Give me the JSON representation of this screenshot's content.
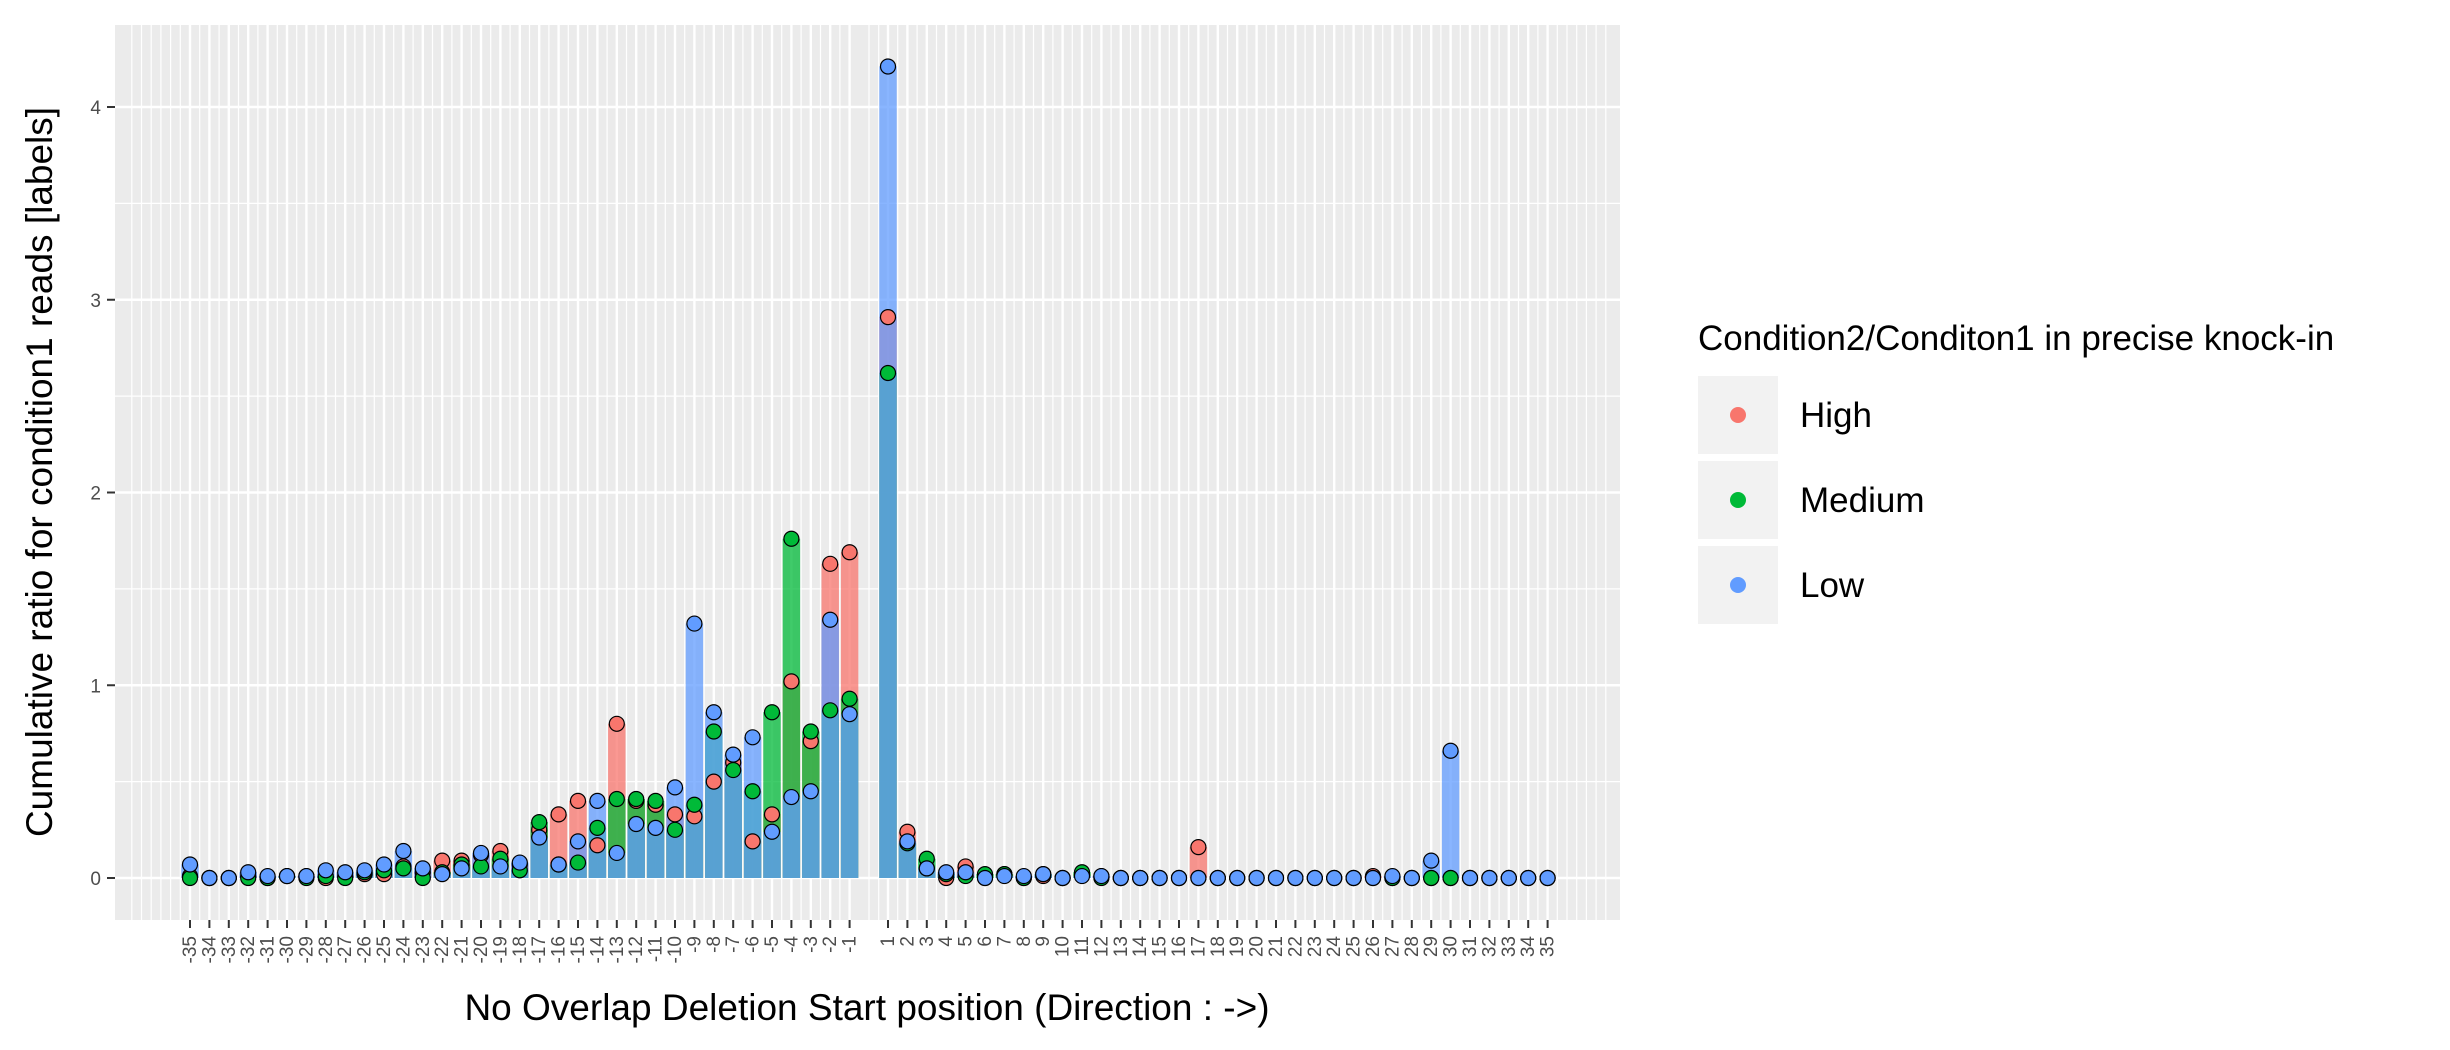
{
  "chart_data": {
    "type": "bar",
    "xlabel": "No Overlap Deletion Start position (Direction : ->)",
    "ylabel": "Cumulative ratio for condition1 reads [labels]",
    "ylim": [
      -0.2,
      4.4
    ],
    "yticks": [
      0,
      1,
      2,
      3,
      4
    ],
    "grid": true,
    "legend": {
      "title": "Condition2/Conditon1 in precise knock-in",
      "position": "right",
      "entries": [
        "High",
        "Medium",
        "Low"
      ]
    },
    "colors": {
      "High": "#F8766D",
      "Medium": "#00BA38",
      "Low": "#619CFF"
    },
    "categories": [
      "-35",
      "-34",
      "-33",
      "-32",
      "-31",
      "-30",
      "-29",
      "-28",
      "-27",
      "-26",
      "-25",
      "-24",
      "-23",
      "-22",
      "-21",
      "-20",
      "-19",
      "-18",
      "-17",
      "-16",
      "-15",
      "-14",
      "-13",
      "-12",
      "-11",
      "-10",
      "-9",
      "-8",
      "-7",
      "-6",
      "-5",
      "-4",
      "-3",
      "-2",
      "-1",
      "1",
      "2",
      "3",
      "4",
      "5",
      "6",
      "7",
      "8",
      "9",
      "10",
      "11",
      "12",
      "13",
      "14",
      "15",
      "16",
      "17",
      "18",
      "19",
      "20",
      "21",
      "22",
      "23",
      "24",
      "25",
      "26",
      "27",
      "28",
      "29",
      "30",
      "31",
      "32",
      "33",
      "34",
      "35"
    ],
    "series": [
      {
        "name": "High",
        "values": [
          0.01,
          0.0,
          0.0,
          0.01,
          0.0,
          0.01,
          0.01,
          0.0,
          0.01,
          0.02,
          0.02,
          0.06,
          0.03,
          0.09,
          0.09,
          0.12,
          0.14,
          0.07,
          0.25,
          0.33,
          0.4,
          0.17,
          0.8,
          0.4,
          0.38,
          0.33,
          0.32,
          0.5,
          0.6,
          0.19,
          0.33,
          1.02,
          0.71,
          1.63,
          1.69,
          2.91,
          0.24,
          0.05,
          0.0,
          0.06,
          0.0,
          0.02,
          0.0,
          0.01,
          0.0,
          0.02,
          0.01,
          0.0,
          0.0,
          0.0,
          0.0,
          0.16,
          0.0,
          0.0,
          0.0,
          0.0,
          0.0,
          0.0,
          0.0,
          0.0,
          0.01,
          0.0,
          0.0,
          0.0,
          0.0,
          0.0,
          0.0,
          0.0,
          0.0,
          0.0
        ]
      },
      {
        "name": "Medium",
        "values": [
          0.0,
          0.0,
          0.0,
          0.0,
          0.0,
          0.01,
          0.0,
          0.01,
          0.0,
          0.03,
          0.04,
          0.05,
          0.0,
          0.03,
          0.07,
          0.06,
          0.1,
          0.04,
          0.29,
          0.07,
          0.08,
          0.26,
          0.41,
          0.41,
          0.4,
          0.25,
          0.38,
          0.76,
          0.56,
          0.45,
          0.86,
          1.76,
          0.76,
          0.87,
          0.93,
          2.62,
          0.18,
          0.1,
          0.02,
          0.01,
          0.02,
          0.02,
          0.0,
          0.02,
          0.0,
          0.03,
          0.0,
          0.0,
          0.0,
          0.0,
          0.0,
          0.0,
          0.0,
          0.0,
          0.0,
          0.0,
          0.0,
          0.0,
          0.0,
          0.0,
          0.0,
          0.0,
          0.0,
          0.0,
          0.0,
          0.0,
          0.0,
          0.0,
          0.0,
          0.0
        ]
      },
      {
        "name": "Low",
        "values": [
          0.07,
          0.0,
          0.0,
          0.03,
          0.01,
          0.01,
          0.01,
          0.04,
          0.03,
          0.04,
          0.07,
          0.14,
          0.05,
          0.02,
          0.05,
          0.13,
          0.06,
          0.08,
          0.21,
          0.07,
          0.19,
          0.4,
          0.13,
          0.28,
          0.26,
          0.47,
          1.32,
          0.86,
          0.64,
          0.73,
          0.24,
          0.42,
          0.45,
          1.34,
          0.85,
          4.21,
          0.19,
          0.05,
          0.03,
          0.03,
          0.0,
          0.01,
          0.01,
          0.02,
          0.0,
          0.01,
          0.01,
          0.0,
          0.0,
          0.0,
          0.0,
          0.0,
          0.0,
          0.0,
          0.0,
          0.0,
          0.0,
          0.0,
          0.0,
          0.0,
          0.0,
          0.01,
          0.0,
          0.09,
          0.66,
          0.0,
          0.0,
          0.0,
          0.0,
          0.0
        ]
      }
    ]
  }
}
